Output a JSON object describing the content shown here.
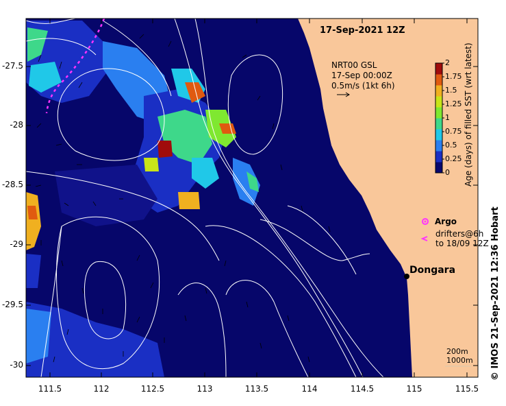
{
  "title": "17-Sep-2021 12Z",
  "product": {
    "line1": "NRT00 GSL",
    "line2": "17-Sep 00:00Z",
    "vector_scale": "0.5m/s (1kt 6h)"
  },
  "colorbar": {
    "label": "Age (days) of filled SST (wrt latest)",
    "ticks": [
      "2",
      "1.75",
      "1.5",
      "1.25",
      "1",
      "0.75",
      "0.5",
      "0.25",
      "0"
    ],
    "min": 0,
    "max": 2,
    "colors": [
      "#08086e",
      "#1a2fc4",
      "#2a7ff0",
      "#20c8e8",
      "#3ed88a",
      "#7fe830",
      "#c8e418",
      "#f0b020",
      "#e05a10",
      "#a00c0c"
    ]
  },
  "legend": {
    "argo_label": "Argo",
    "drifters_line1": "drifters@6h",
    "drifters_line2": "to 18/09 12Z"
  },
  "place_label": "Dongara",
  "contours": {
    "line1": "200m",
    "line2": "1000m"
  },
  "axes": {
    "lat_ticks": [
      "-27.5",
      "-28",
      "-28.5",
      "-29",
      "-29.5",
      "-30"
    ],
    "lon_ticks": [
      "111.5",
      "112",
      "112.5",
      "113",
      "113.5",
      "114",
      "114.5",
      "115",
      "115.5"
    ],
    "lat_range": [
      -30.1,
      -27.05
    ],
    "lon_range": [
      111.3,
      115.65
    ]
  },
  "credit": "© IMOS 21-Sep-2021 12:36 Hobart",
  "colors": {
    "ocean": "#06066a",
    "land": "#f9c79a",
    "argo": "#ff33ff",
    "drifter": "#ff33ff",
    "contour": "#ffffff"
  }
}
